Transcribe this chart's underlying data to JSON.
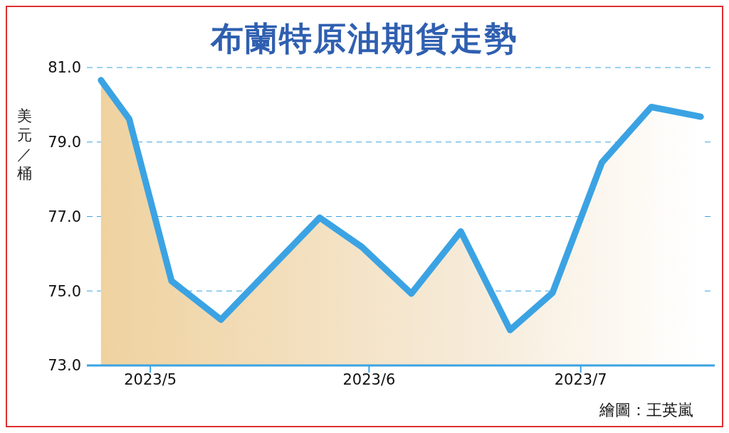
{
  "chart_data": {
    "type": "area",
    "title": "布蘭特原油期貨走勢",
    "ylabel": "美元／桶",
    "annotations": [
      "繪圖：王英嵐"
    ],
    "x": [
      "2023-04-24",
      "2023-04-28",
      "2023-05-04",
      "2023-05-11",
      "2023-05-25",
      "2023-05-31",
      "2023-06-07",
      "2023-06-14",
      "2023-06-21",
      "2023-06-27",
      "2023-07-04",
      "2023-07-11",
      "2023-07-18"
    ],
    "series": [
      {
        "color": "#3ba3e3",
        "values": [
          80.66,
          79.62,
          75.27,
          74.23,
          76.97,
          76.18,
          74.93,
          76.6,
          73.95,
          74.95,
          78.45,
          79.94,
          79.68
        ]
      }
    ],
    "xlim": [
      "2023-04-22",
      "2023-07-20"
    ],
    "xticks": [
      {
        "value": "2023-05",
        "label": "2023/5"
      },
      {
        "value": "2023-06",
        "label": "2023/6"
      },
      {
        "value": "2023-07",
        "label": "2023/7"
      }
    ],
    "ylim": [
      73,
      81
    ],
    "yticks": [
      {
        "value": 73,
        "label": "73.0"
      },
      {
        "value": 75,
        "label": "75.0"
      },
      {
        "value": 77,
        "label": "77.0"
      },
      {
        "value": 79,
        "label": "79.0"
      },
      {
        "value": 81,
        "label": "81.0"
      }
    ],
    "grid": "y",
    "line_style": "solid",
    "marker": "none"
  }
}
